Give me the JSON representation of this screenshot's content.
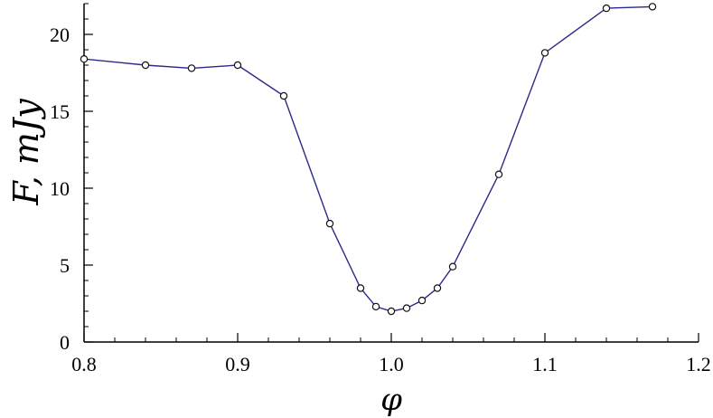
{
  "chart_data": {
    "type": "line",
    "xlabel": "φ",
    "ylabel": "F, mJy",
    "xlim": [
      0.8,
      1.2
    ],
    "ylim": [
      0,
      22
    ],
    "xticks": [
      "0.8",
      "0.9",
      "1.0",
      "1.1",
      "1.2"
    ],
    "yticks": [
      "0",
      "5",
      "10",
      "15",
      "20"
    ],
    "grid": false,
    "legend": "none",
    "line_color": "#2a2a8a",
    "marker": "open-circle",
    "series": [
      {
        "x": [
          0.8,
          0.84,
          0.87,
          0.9,
          0.93,
          0.96,
          0.98,
          0.99,
          1.0,
          1.01,
          1.02,
          1.03,
          1.04,
          1.07,
          1.1,
          1.14,
          1.17
        ],
        "y": [
          18.4,
          18.0,
          17.8,
          18.0,
          16.0,
          7.7,
          3.5,
          2.3,
          2.0,
          2.2,
          2.7,
          3.5,
          4.9,
          10.9,
          18.8,
          21.7,
          21.8
        ]
      }
    ]
  }
}
